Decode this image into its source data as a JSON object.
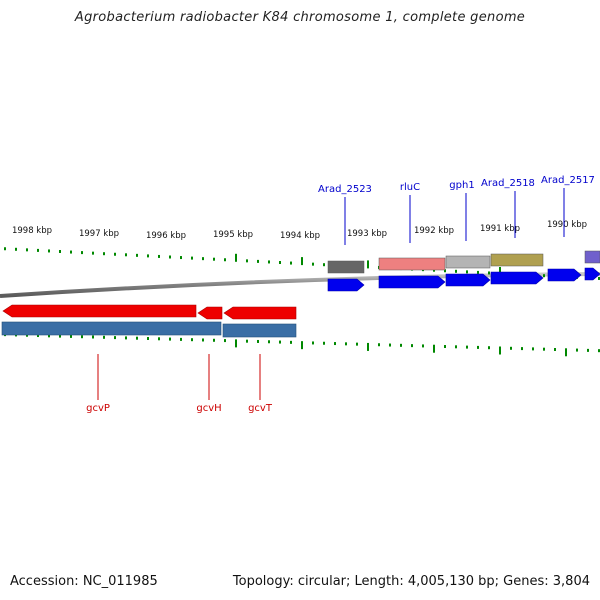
{
  "title": "Agrobacterium radiobacter K84 chromosome 1, complete genome",
  "footer": {
    "accession": "Accession: NC_011985",
    "summary": "Topology: circular; Length: 4,005,130 bp; Genes: 3,804"
  },
  "ticks": [
    {
      "label": "1998 kbp"
    },
    {
      "label": "1997 kbp"
    },
    {
      "label": "1996 kbp"
    },
    {
      "label": "1995 kbp"
    },
    {
      "label": "1994 kbp"
    },
    {
      "label": "1993 kbp"
    },
    {
      "label": "1992 kbp"
    },
    {
      "label": "1991 kbp"
    },
    {
      "label": "1990 kbp"
    }
  ],
  "top_labels": [
    {
      "label": "Arad_2523"
    },
    {
      "label": "rluC"
    },
    {
      "label": "gph1"
    },
    {
      "label": "Arad_2518"
    },
    {
      "label": "Arad_2517"
    }
  ],
  "bottom_labels": [
    {
      "label": "gcvP"
    },
    {
      "label": "gcvH"
    },
    {
      "label": "gcvT"
    }
  ],
  "colors": {
    "label_blue": "#0000cc",
    "label_red": "#cc0000",
    "tick_green": "#008800",
    "gene_blue": "#0000ee",
    "gene_red": "#ee0000",
    "steel_blue": "#3a6ea5",
    "dark_grey": "#666666",
    "salmon": "#ee8080",
    "light_grey": "#b4b4b4",
    "olive": "#b0a050",
    "lavender": "#7060cc",
    "backbone": "#808080"
  }
}
